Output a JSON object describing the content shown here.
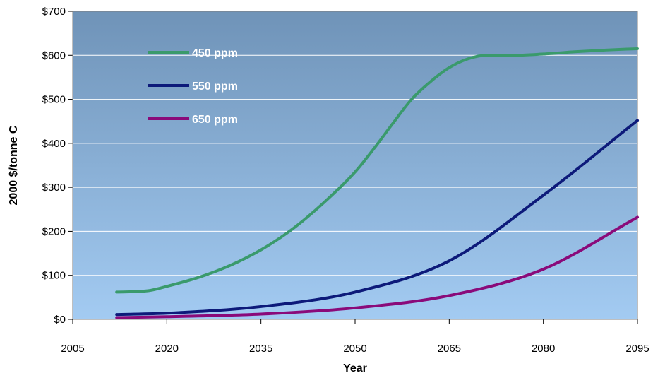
{
  "chart_data": {
    "type": "line",
    "xlabel": "Year",
    "ylabel": "2000 $/tonne C",
    "xlim": [
      2005,
      2095
    ],
    "ylim": [
      0,
      700
    ],
    "x_ticks": [
      2005,
      2020,
      2035,
      2050,
      2065,
      2080,
      2095
    ],
    "x_tick_labels": [
      "2005",
      "2020",
      "2035",
      "2050",
      "2065",
      "2080",
      "2095"
    ],
    "y_ticks": [
      0,
      100,
      200,
      300,
      400,
      500,
      600,
      700
    ],
    "y_tick_labels": [
      "$0",
      "$100",
      "$200",
      "$300",
      "$400",
      "$500",
      "$600",
      "$700"
    ],
    "grid": true,
    "legend_position": "top-left",
    "background": {
      "top": "#6f93b8",
      "bottom": "#a3cbf2"
    },
    "series": [
      {
        "name": "450 ppm",
        "color": "#3a9a6c",
        "points": [
          [
            2012,
            62
          ],
          [
            2017,
            65
          ],
          [
            2020,
            75
          ],
          [
            2025,
            95
          ],
          [
            2030,
            122
          ],
          [
            2035,
            158
          ],
          [
            2040,
            205
          ],
          [
            2045,
            265
          ],
          [
            2050,
            335
          ],
          [
            2053,
            388
          ],
          [
            2056,
            445
          ],
          [
            2059,
            500
          ],
          [
            2062,
            540
          ],
          [
            2065,
            572
          ],
          [
            2068,
            592
          ],
          [
            2071,
            600
          ],
          [
            2075,
            600
          ],
          [
            2080,
            603
          ],
          [
            2085,
            608
          ],
          [
            2090,
            612
          ],
          [
            2095,
            615
          ]
        ]
      },
      {
        "name": "550 ppm",
        "color": "#0d1a7a",
        "points": [
          [
            2012,
            11
          ],
          [
            2020,
            14
          ],
          [
            2035,
            29
          ],
          [
            2050,
            62
          ],
          [
            2065,
            133
          ],
          [
            2080,
            282
          ],
          [
            2095,
            452
          ]
        ]
      },
      {
        "name": "650 ppm",
        "color": "#8a0a7a",
        "points": [
          [
            2012,
            4
          ],
          [
            2020,
            6
          ],
          [
            2035,
            12
          ],
          [
            2050,
            26
          ],
          [
            2065,
            54
          ],
          [
            2080,
            114
          ],
          [
            2095,
            232
          ]
        ]
      }
    ]
  }
}
